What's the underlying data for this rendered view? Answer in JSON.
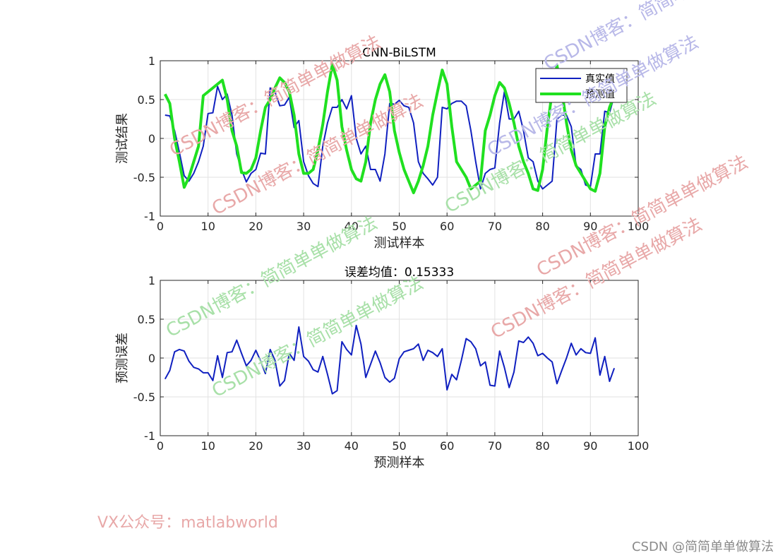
{
  "chart_data": [
    {
      "type": "line",
      "title": "CNN-BiLSTM",
      "xlabel": "测试样本",
      "ylabel": "测试结果",
      "xlim": [
        0,
        100
      ],
      "ylim": [
        -1,
        1
      ],
      "xticks": [
        "0",
        "10",
        "20",
        "30",
        "40",
        "50",
        "60",
        "70",
        "80",
        "90",
        "100"
      ],
      "yticks": [
        "-1",
        "-0.5",
        "0",
        "0.5",
        "1"
      ],
      "grid": true,
      "legend": "top-right",
      "series": [
        {
          "name": "真实值",
          "color": "#1020c0",
          "values": [
            0.3,
            0.29,
            0.1,
            -0.18,
            -0.48,
            -0.55,
            -0.45,
            -0.3,
            -0.1,
            0.32,
            0.33,
            0.67,
            0.5,
            0.57,
            0.3,
            -0.2,
            -0.4,
            -0.56,
            -0.45,
            -0.4,
            -0.19,
            -0.2,
            0.65,
            0.6,
            0.42,
            0.43,
            0.53,
            0.14,
            0.23,
            -0.3,
            -0.48,
            -0.58,
            -0.62,
            -0.1,
            0.2,
            0.4,
            0.4,
            0.5,
            0.38,
            0.55,
            0.0,
            -0.2,
            -0.1,
            -0.4,
            -0.4,
            -0.55,
            -0.2,
            0.45,
            0.44,
            0.49,
            0.42,
            0.4,
            0.2,
            -0.3,
            -0.45,
            -0.52,
            -0.6,
            -0.5,
            0.4,
            0.38,
            0.45,
            0.48,
            0.48,
            0.42,
            0.1,
            -0.3,
            -0.65,
            -0.45,
            -0.4,
            -0.38,
            0.2,
            0.6,
            0.25,
            0.25,
            0.35,
            0.1,
            -0.25,
            -0.3,
            -0.55,
            -0.65,
            -0.6,
            -0.55,
            0.25,
            0.3,
            0.3,
            0.15,
            -0.35,
            -0.4,
            -0.6,
            -0.62,
            -0.2,
            -0.2,
            0.35,
            0.33,
            0.55
          ]
        },
        {
          "name": "预测值",
          "color": "#20e020",
          "values": [
            0.57,
            0.45,
            0.0,
            -0.3,
            -0.63,
            -0.5,
            -0.3,
            -0.1,
            0.55,
            0.6,
            0.65,
            0.7,
            0.75,
            0.5,
            0.1,
            -0.1,
            -0.44,
            -0.45,
            -0.4,
            -0.25,
            0.1,
            0.4,
            0.5,
            0.65,
            0.78,
            0.72,
            0.6,
            0.3,
            -0.2,
            -0.45,
            -0.45,
            -0.4,
            -0.15,
            0.18,
            0.6,
            0.95,
            0.75,
            0.15,
            -0.15,
            -0.4,
            -0.52,
            -0.55,
            -0.3,
            0.2,
            0.5,
            0.7,
            0.82,
            0.6,
            0.1,
            -0.18,
            -0.4,
            -0.55,
            -0.7,
            -0.55,
            -0.35,
            -0.1,
            0.3,
            0.6,
            0.88,
            0.7,
            0.15,
            -0.3,
            -0.4,
            -0.5,
            -0.65,
            -0.6,
            -0.55,
            0.1,
            0.3,
            0.55,
            0.72,
            0.65,
            0.45,
            0.2,
            -0.1,
            -0.3,
            -0.45,
            -0.65,
            -0.67,
            -0.4,
            0.15,
            0.6,
            0.94,
            0.62,
            0.2,
            -0.15,
            -0.35,
            -0.45,
            -0.55,
            -0.65,
            -0.68,
            -0.45,
            0.15,
            0.4,
            0.55
          ]
        }
      ]
    },
    {
      "type": "line",
      "title": "误差均值：0.15333",
      "xlabel": "预测样本",
      "ylabel": "预测误差",
      "xlim": [
        0,
        100
      ],
      "ylim": [
        -1,
        1
      ],
      "xticks": [
        "0",
        "10",
        "20",
        "30",
        "40",
        "50",
        "60",
        "70",
        "80",
        "90",
        "100"
      ],
      "yticks": [
        "-1",
        "-0.5",
        "0",
        "0.5",
        "1"
      ],
      "grid": true,
      "series": [
        {
          "color": "#1020c0",
          "values": [
            -0.27,
            -0.16,
            0.08,
            0.11,
            0.09,
            -0.04,
            -0.12,
            -0.14,
            -0.19,
            -0.19,
            -0.29,
            0.03,
            -0.25,
            0.07,
            0.08,
            0.23,
            0.06,
            -0.1,
            -0.03,
            0.1,
            -0.04,
            -0.2,
            0.11,
            -0.03,
            -0.36,
            -0.29,
            0.06,
            -0.03,
            0.4,
            0.02,
            -0.04,
            -0.15,
            -0.18,
            0.02,
            -0.21,
            -0.46,
            -0.42,
            0.21,
            0.11,
            0.04,
            0.42,
            0.18,
            -0.25,
            -0.08,
            0.09,
            -0.06,
            -0.25,
            -0.31,
            -0.26,
            -0.01,
            0.08,
            0.1,
            0.12,
            0.18,
            -0.03,
            0.1,
            0.07,
            0.02,
            0.12,
            -0.41,
            -0.21,
            -0.28,
            -0.03,
            0.25,
            0.21,
            0.12,
            -0.1,
            -0.05,
            -0.35,
            -0.36,
            0.09,
            -0.12,
            -0.38,
            -0.18,
            0.22,
            0.2,
            0.27,
            0.19,
            0.03,
            0.06,
            0.0,
            -0.05,
            -0.33,
            -0.16,
            0.0,
            0.19,
            0.04,
            0.12,
            0.07,
            0.06,
            0.26,
            -0.22,
            0.02,
            -0.3,
            -0.13
          ]
        }
      ]
    }
  ],
  "watermarks": [
    {
      "text": "CSDN博客：简简单单做算法",
      "color": "#e8a8a8"
    },
    {
      "text": "CSDN博客：简简单单做算法",
      "color": "#b8b8e8"
    },
    {
      "text": "CSDN博客：简简单单做算法",
      "color": "#e8a8a8"
    },
    {
      "text": "CSDN博客：简简单单做算法",
      "color": "#a8e0a8"
    },
    {
      "text": "CSDN博客：简简单单做算法",
      "color": "#b8b8e8"
    },
    {
      "text": "CSDN博客：简简单单做算法",
      "color": "#e8a8a8"
    },
    {
      "text": "CSDN博客：简简单单做算法",
      "color": "#a8e0a8"
    },
    {
      "text": "CSDN博客：简简单单做算法",
      "color": "#e8a8a8"
    },
    {
      "text": "CSDN博客：简简单单做算法",
      "color": "#a8e0a8"
    }
  ],
  "footer": {
    "left": "VX公众号：matlabworld",
    "right": "CSDN @简简单单做算法"
  }
}
